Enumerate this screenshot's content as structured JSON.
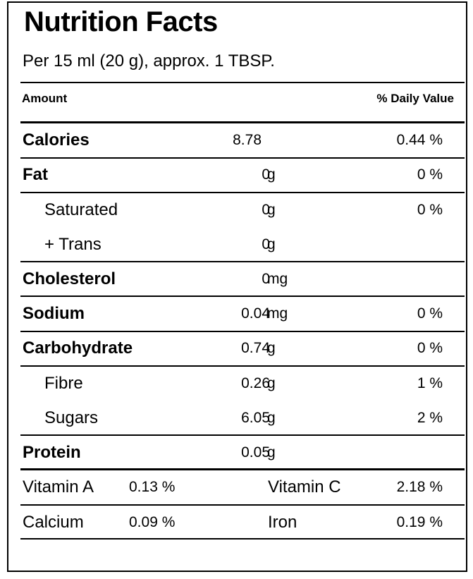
{
  "title": "Nutrition Facts",
  "serving": "Per 15 ml (20 g), approx. 1 TBSP.",
  "header": {
    "amount": "Amount",
    "daily_value": "% Daily Value"
  },
  "nutrients": [
    {
      "label": "Calories",
      "amount": "8.78",
      "unit": "",
      "dv": "0.44 %"
    },
    {
      "label": "Fat",
      "amount": "0",
      "unit": "g",
      "dv": "0 %"
    },
    {
      "label": "Saturated",
      "amount": "0",
      "unit": "g",
      "dv": "0 %"
    },
    {
      "label": "+ Trans",
      "amount": "0",
      "unit": "g",
      "dv": ""
    },
    {
      "label": "Cholesterol",
      "amount": "0",
      "unit": "mg",
      "dv": ""
    },
    {
      "label": "Sodium",
      "amount": "0.04",
      "unit": "mg",
      "dv": "0 %"
    },
    {
      "label": "Carbohydrate",
      "amount": "0.74",
      "unit": "g",
      "dv": "0 %"
    },
    {
      "label": "Fibre",
      "amount": "0.26",
      "unit": "g",
      "dv": "1 %"
    },
    {
      "label": "Sugars",
      "amount": "6.05",
      "unit": "g",
      "dv": "2 %"
    },
    {
      "label": "Protein",
      "amount": "0.05",
      "unit": "g",
      "dv": ""
    }
  ],
  "vitamins": [
    {
      "label": "Vitamin A",
      "value": "0.13 %"
    },
    {
      "label": "Vitamin C",
      "value": "2.18 %"
    },
    {
      "label": "Calcium",
      "value": "0.09 %"
    },
    {
      "label": "Iron",
      "value": "0.19 %"
    }
  ]
}
